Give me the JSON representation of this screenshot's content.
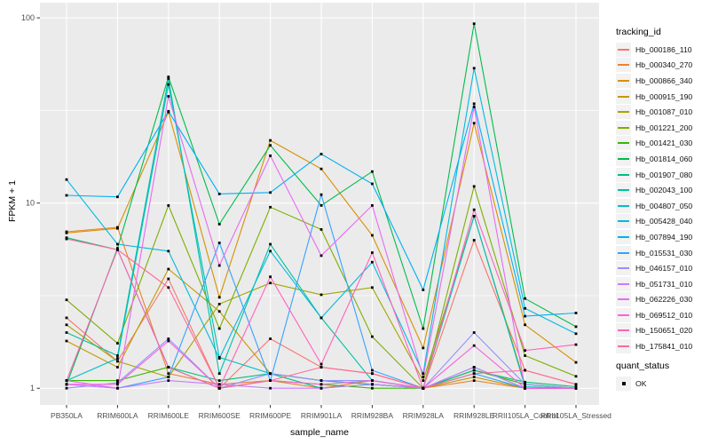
{
  "chart_data": {
    "type": "line",
    "title": "",
    "xlabel": "sample_name",
    "ylabel": "FPKM + 1",
    "y_scale": "log10",
    "ylim": [
      0.813,
      120.8
    ],
    "grid": true,
    "legend_position": "right",
    "panel_bg": "#EBEBEB",
    "grid_color": "#FFFFFF",
    "tick_label_color": "#4D4D4D",
    "point_color": "#000000",
    "y_ticks": [
      {
        "label": "1",
        "value": 1
      },
      {
        "label": "10",
        "value": 10
      },
      {
        "label": "100",
        "value": 100
      }
    ],
    "y_minor_ticks": [
      3.1623,
      31.623
    ],
    "categories": [
      "PB350LA",
      "RRIM600LA",
      "RRIM600LE",
      "RRIM600SE",
      "RRIM600PE",
      "RRIM901LA",
      "RRIM928BA",
      "RRIM928LA",
      "RRIM928LE",
      "RRII105LA_Control",
      "RRII105LA_Stressed"
    ],
    "series": [
      {
        "name": "Hb_000186_110",
        "color": "#F8766D",
        "values": [
          2.4,
          1.4,
          3.9,
          1.0,
          1.85,
          1.3,
          1.2,
          1.0,
          6.3,
          1.25,
          1.05
        ]
      },
      {
        "name": "Hb_000340_270",
        "color": "#EA8331",
        "values": [
          7.0,
          7.4,
          1.2,
          1.05,
          1.1,
          1.0,
          1.1,
          1.0,
          1.1,
          1.0,
          1.0
        ]
      },
      {
        "name": "Hb_000866_340",
        "color": "#D89000",
        "values": [
          6.9,
          7.3,
          31.0,
          3.1,
          21.8,
          15.3,
          6.7,
          1.65,
          27.0,
          2.2,
          1.38
        ]
      },
      {
        "name": "Hb_000915_190",
        "color": "#C09B00",
        "values": [
          1.8,
          1.3,
          4.4,
          2.6,
          1.2,
          1.1,
          1.05,
          1.0,
          1.15,
          1.0,
          1.0
        ]
      },
      {
        "name": "Hb_001087_010",
        "color": "#A3A500",
        "values": [
          2.2,
          1.4,
          1.15,
          2.85,
          3.7,
          3.2,
          3.5,
          1.1,
          8.5,
          1.05,
          1.0
        ]
      },
      {
        "name": "Hb_001221_200",
        "color": "#7CAE00",
        "values": [
          3.0,
          1.75,
          9.7,
          2.1,
          9.5,
          7.2,
          1.9,
          1.0,
          12.3,
          1.5,
          1.16
        ]
      },
      {
        "name": "Hb_001421_030",
        "color": "#39B600",
        "values": [
          1.1,
          1.1,
          1.3,
          1.0,
          1.1,
          1.05,
          1.0,
          1.0,
          1.25,
          1.05,
          1.0
        ]
      },
      {
        "name": "Hb_001814_060",
        "color": "#00BB4E",
        "values": [
          1.05,
          5.7,
          48.0,
          7.7,
          20.5,
          9.7,
          14.8,
          2.1,
          93.0,
          3.05,
          2.15
        ]
      },
      {
        "name": "Hb_001907_080",
        "color": "#00BF7D",
        "values": [
          6.5,
          5.6,
          1.3,
          1.1,
          1.2,
          1.0,
          1.05,
          1.0,
          1.25,
          1.08,
          1.02
        ]
      },
      {
        "name": "Hb_002043_100",
        "color": "#00C1A3",
        "values": [
          2.0,
          1.5,
          47.0,
          1.2,
          6.0,
          2.4,
          1.1,
          1.0,
          1.3,
          1.0,
          1.0
        ]
      },
      {
        "name": "Hb_004807_050",
        "color": "#00BFC4",
        "values": [
          1.1,
          1.45,
          43.7,
          1.47,
          1.2,
          1.1,
          1.05,
          1.0,
          8.5,
          1.02,
          1.0
        ]
      },
      {
        "name": "Hb_005428_040",
        "color": "#00BAE0",
        "values": [
          13.4,
          6.0,
          5.5,
          1.45,
          5.5,
          2.4,
          4.8,
          1.2,
          53.5,
          2.7,
          1.97
        ]
      },
      {
        "name": "Hb_007894_190",
        "color": "#00B0F6",
        "values": [
          11.0,
          10.8,
          31.3,
          11.2,
          11.4,
          18.4,
          12.7,
          3.4,
          34.4,
          2.45,
          2.55
        ]
      },
      {
        "name": "Hb_015531_030",
        "color": "#35A2FF",
        "values": [
          1.05,
          1.0,
          1.15,
          6.1,
          1.1,
          11.1,
          1.25,
          1.0,
          1.2,
          1.0,
          1.0
        ]
      },
      {
        "name": "Hb_046157_010",
        "color": "#9590FF",
        "values": [
          1.0,
          1.07,
          1.85,
          1.0,
          1.2,
          1.1,
          1.1,
          1.0,
          2.0,
          1.05,
          1.0
        ]
      },
      {
        "name": "Hb_051731_010",
        "color": "#C77CFF",
        "values": [
          1.05,
          1.0,
          1.1,
          1.05,
          1.0,
          1.0,
          1.05,
          1.0,
          1.3,
          1.0,
          1.0
        ]
      },
      {
        "name": "Hb_062226_030",
        "color": "#E76BF3",
        "values": [
          1.1,
          1.0,
          37.7,
          4.6,
          18.0,
          5.2,
          9.7,
          1.15,
          33.0,
          1.0,
          1.0
        ]
      },
      {
        "name": "Hb_069512_010",
        "color": "#FA62DB",
        "values": [
          1.05,
          1.05,
          1.8,
          1.0,
          1.1,
          1.05,
          1.1,
          1.0,
          1.7,
          1.0,
          1.0
        ]
      },
      {
        "name": "Hb_150651_020",
        "color": "#FF62BC",
        "values": [
          1.1,
          5.6,
          1.3,
          1.0,
          4.0,
          1.35,
          5.4,
          1.0,
          9.2,
          1.6,
          1.72
        ]
      },
      {
        "name": "Hb_175841_010",
        "color": "#FF6A98",
        "values": [
          6.4,
          5.6,
          3.5,
          1.0,
          1.1,
          1.3,
          1.2,
          1.0,
          1.2,
          1.25,
          1.05
        ]
      }
    ],
    "legend": {
      "tracking_title": "tracking_id",
      "quant_title": "quant_status",
      "quant_items": [
        "OK"
      ]
    }
  }
}
